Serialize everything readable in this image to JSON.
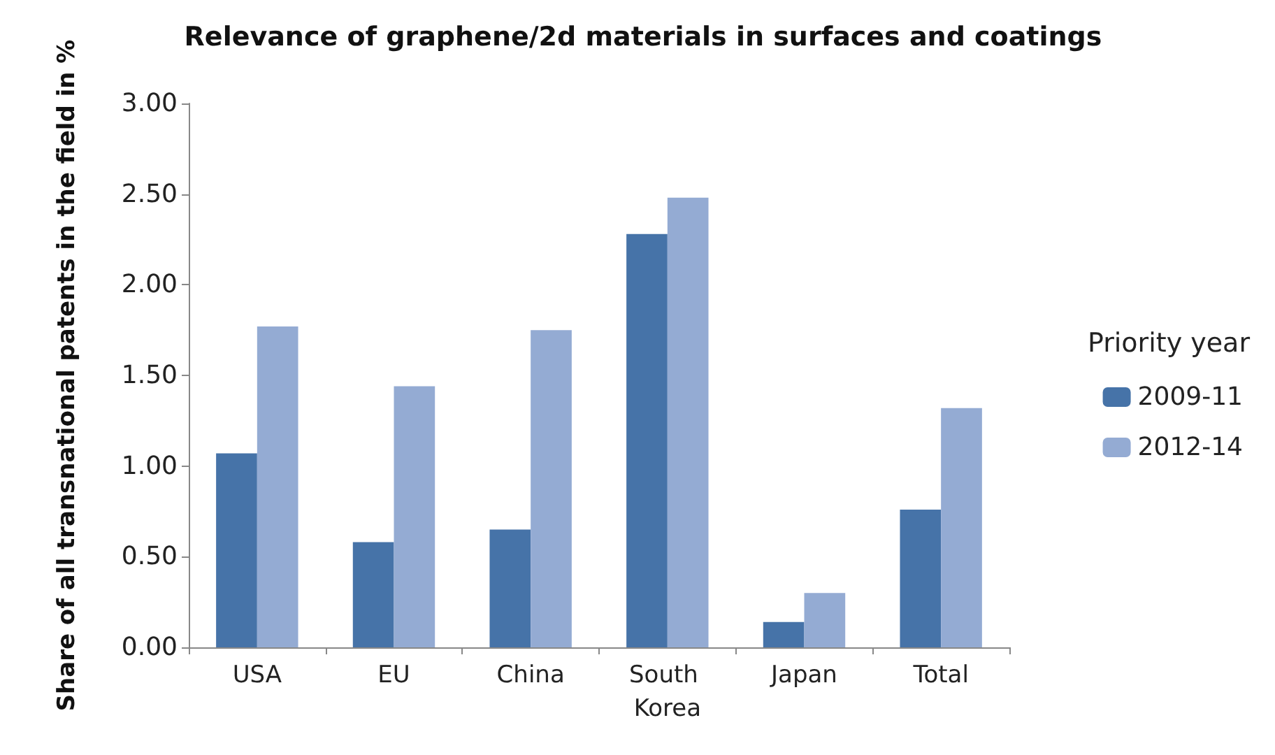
{
  "chart_data": {
    "type": "bar",
    "title": "Relevance of graphene/2d materials in surfaces and coatings",
    "ylabel": "Share of all transnational patents in the field in %",
    "legend_title": "Priority year",
    "categories": [
      "USA",
      "EU",
      "China",
      "South Korea",
      "Japan",
      "Total"
    ],
    "series": [
      {
        "name": "2009-11",
        "color": "#4673a8",
        "values": [
          1.07,
          0.58,
          0.65,
          2.28,
          0.14,
          0.76
        ]
      },
      {
        "name": "2012-14",
        "color": "#94abd3",
        "values": [
          1.77,
          1.44,
          1.75,
          2.48,
          0.3,
          1.32
        ]
      }
    ],
    "ylim": [
      0,
      3
    ],
    "yticks": [
      {
        "value": 0,
        "label": "0.00"
      },
      {
        "value": 0.5,
        "label": "0.50"
      },
      {
        "value": 1,
        "label": "1.00"
      },
      {
        "value": 1.5,
        "label": "1.50"
      },
      {
        "value": 2,
        "label": "2.00"
      },
      {
        "value": 2.5,
        "label": "2.50"
      },
      {
        "value": 3,
        "label": "3.00"
      }
    ],
    "grid": false,
    "legend": "right"
  }
}
